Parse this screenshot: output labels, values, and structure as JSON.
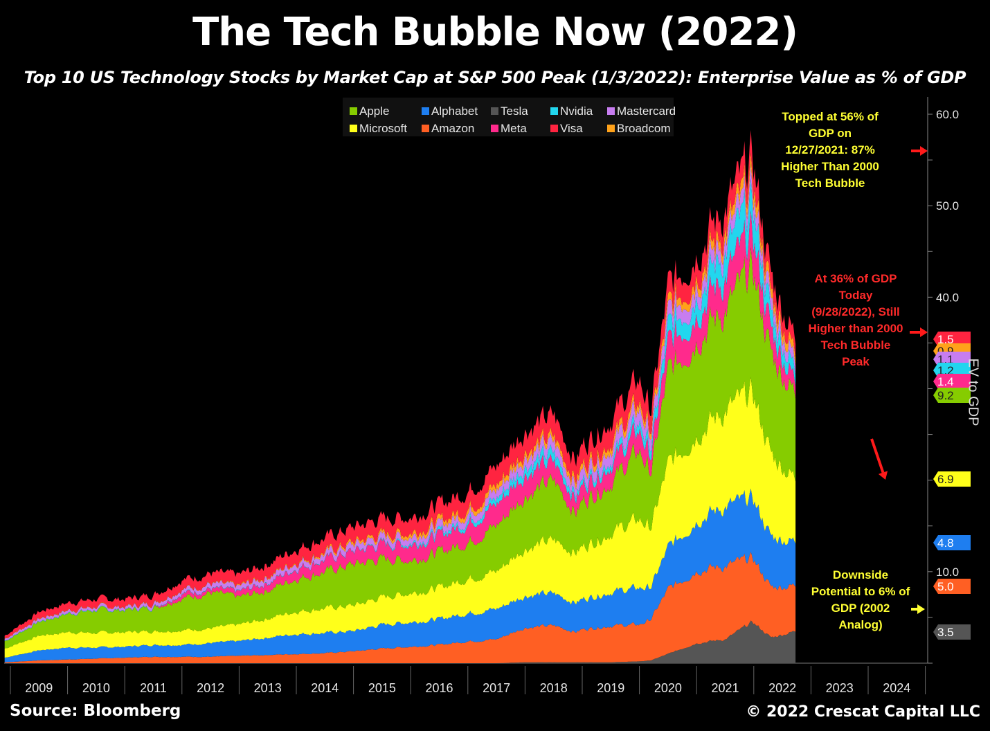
{
  "title": "The Tech Bubble Now (2022)",
  "subtitle": "Top 10 US Technology Stocks by Market Cap at S&P 500 Peak (1/3/2022): Enterprise Value as % of GDP",
  "source": "Source: Bloomberg",
  "copyright": "© 2022 Crescat Capital LLC",
  "annotations": {
    "top": "Topped at 56% of GDP on 12/27/2021: 87% Higher Than 2000 Tech Bubble",
    "middle": "At 36% of GDP Today (9/28/2022), Still Higher than 2000 Tech Bubble Peak",
    "bottom": "Downside Potential to 6% of GDP (2002 Analog)"
  },
  "colors": {
    "annotation_yellow": "#ffff33",
    "annotation_red": "#ff2a2a",
    "arrow_red": "#ff1a1a"
  },
  "chart_data": {
    "type": "area",
    "stacked": true,
    "xlabel": "",
    "ylabel": "EV to GDP",
    "ylim": [
      0,
      60
    ],
    "y_ticks": [
      "10.0",
      "40.0",
      "50.0",
      "60.0"
    ],
    "year_labels": [
      "2009",
      "2010",
      "2011",
      "2012",
      "2013",
      "2014",
      "2015",
      "2016",
      "2017",
      "2018",
      "2019",
      "2020",
      "2021",
      "2022",
      "2023",
      "2024"
    ],
    "x": [
      2008.9,
      2009.5,
      2010.0,
      2010.5,
      2011.0,
      2011.5,
      2012.0,
      2012.5,
      2013.0,
      2013.5,
      2014.0,
      2014.5,
      2015.0,
      2015.5,
      2016.0,
      2016.5,
      2017.0,
      2017.5,
      2018.0,
      2018.5,
      2018.9,
      2019.0,
      2019.5,
      2020.0,
      2020.2,
      2020.5,
      2021.0,
      2021.5,
      2021.98,
      2022.3,
      2022.73
    ],
    "legend": [
      {
        "name": "Apple",
        "color": "#86cc00"
      },
      {
        "name": "Alphabet",
        "color": "#1e7ef0"
      },
      {
        "name": "Tesla",
        "color": "#555555"
      },
      {
        "name": "Nvidia",
        "color": "#22d6ee"
      },
      {
        "name": "Mastercard",
        "color": "#c77df0"
      },
      {
        "name": "Microsoft",
        "color": "#ffff1a"
      },
      {
        "name": "Amazon",
        "color": "#ff5f23"
      },
      {
        "name": "Meta",
        "color": "#ff2a8c"
      },
      {
        "name": "Visa",
        "color": "#ff2440"
      },
      {
        "name": "Broadcom",
        "color": "#ffa21a"
      }
    ],
    "series": [
      {
        "name": "Tesla",
        "color": "#555555",
        "values": [
          0,
          0,
          0,
          0,
          0,
          0,
          0,
          0,
          0,
          0,
          0,
          0,
          0,
          0,
          0,
          0,
          0,
          0,
          0.1,
          0.1,
          0.1,
          0.1,
          0.1,
          0.2,
          0.3,
          1.0,
          2.2,
          2.6,
          4.5,
          2.8,
          3.5
        ]
      },
      {
        "name": "Amazon",
        "color": "#ff5f23",
        "values": [
          0.1,
          0.3,
          0.4,
          0.5,
          0.6,
          0.7,
          0.7,
          0.7,
          0.8,
          0.9,
          1.0,
          1.1,
          1.3,
          1.6,
          1.8,
          2.0,
          2.4,
          2.6,
          3.8,
          4.0,
          3.3,
          3.6,
          4.0,
          4.0,
          4.5,
          7.0,
          8.0,
          8.0,
          7.0,
          5.5,
          5.0
        ]
      },
      {
        "name": "Alphabet",
        "color": "#1e7ef0",
        "values": [
          0.5,
          1.1,
          1.3,
          1.2,
          1.2,
          1.3,
          1.3,
          1.5,
          1.6,
          1.9,
          2.2,
          2.2,
          2.2,
          2.6,
          2.7,
          2.8,
          3.1,
          3.3,
          3.5,
          3.5,
          3.2,
          3.3,
          3.7,
          4.0,
          3.5,
          4.5,
          5.5,
          6.5,
          6.5,
          5.5,
          4.8
        ]
      },
      {
        "name": "Microsoft",
        "color": "#ffff1a",
        "values": [
          1.0,
          1.6,
          1.7,
          1.6,
          1.6,
          1.5,
          1.6,
          1.6,
          1.8,
          2.1,
          2.5,
          2.7,
          2.8,
          3.0,
          3.2,
          3.4,
          3.8,
          4.1,
          5.2,
          5.8,
          5.5,
          5.7,
          6.5,
          7.5,
          6.5,
          9.0,
          9.5,
          10.5,
          11.5,
          9.0,
          6.9
        ]
      },
      {
        "name": "Apple",
        "color": "#86cc00",
        "values": [
          0.8,
          1.5,
          2.0,
          2.5,
          2.4,
          2.6,
          3.5,
          3.9,
          3.0,
          3.1,
          3.6,
          4.0,
          4.5,
          4.2,
          3.6,
          3.9,
          4.0,
          5.0,
          5.8,
          6.5,
          4.3,
          5.0,
          5.5,
          7.5,
          6.0,
          10.0,
          10.5,
          11.0,
          13.5,
          11.0,
          9.2
        ]
      },
      {
        "name": "Meta",
        "color": "#ff2a8c",
        "values": [
          0,
          0,
          0,
          0,
          0,
          0,
          0.5,
          0.4,
          0.6,
          0.8,
          1.1,
          1.3,
          1.4,
          1.6,
          1.7,
          1.8,
          2.0,
          2.3,
          2.4,
          2.0,
          1.5,
          1.7,
          2.0,
          2.2,
          1.8,
          3.0,
          3.0,
          3.6,
          3.8,
          2.5,
          1.4
        ]
      },
      {
        "name": "Nvidia",
        "color": "#22d6ee",
        "values": [
          0.05,
          0.05,
          0.05,
          0.05,
          0.05,
          0.05,
          0.05,
          0.05,
          0.05,
          0.05,
          0.05,
          0.05,
          0.05,
          0.1,
          0.2,
          0.3,
          0.4,
          0.6,
          0.9,
          1.0,
          0.5,
          0.5,
          0.6,
          0.9,
          1.0,
          1.7,
          2.0,
          2.8,
          3.3,
          1.8,
          1.2
        ]
      },
      {
        "name": "Mastercard",
        "color": "#c77df0",
        "values": [
          0.2,
          0.3,
          0.3,
          0.3,
          0.3,
          0.4,
          0.4,
          0.5,
          0.5,
          0.6,
          0.6,
          0.6,
          0.7,
          0.7,
          0.7,
          0.8,
          0.8,
          0.9,
          1.1,
          1.2,
          1.1,
          1.2,
          1.3,
          1.5,
          1.3,
          1.5,
          1.5,
          1.5,
          1.5,
          1.3,
          1.1
        ]
      },
      {
        "name": "Broadcom",
        "color": "#ffa21a",
        "values": [
          0.05,
          0.05,
          0.05,
          0.05,
          0.05,
          0.05,
          0.05,
          0.05,
          0.1,
          0.1,
          0.1,
          0.2,
          0.3,
          0.3,
          0.4,
          0.5,
          0.5,
          0.6,
          0.6,
          0.6,
          0.6,
          0.6,
          0.7,
          0.7,
          0.6,
          0.8,
          0.9,
          1.0,
          1.2,
          1.0,
          0.9
        ]
      },
      {
        "name": "Visa",
        "color": "#ff2440",
        "values": [
          0.3,
          0.7,
          0.8,
          0.8,
          0.8,
          0.9,
          1.0,
          1.1,
          1.2,
          1.3,
          1.4,
          1.5,
          1.6,
          1.7,
          1.7,
          1.8,
          1.9,
          2.0,
          2.2,
          2.3,
          2.0,
          2.1,
          2.3,
          2.5,
          2.0,
          2.2,
          2.2,
          2.2,
          2.3,
          1.8,
          1.5
        ]
      }
    ],
    "right_labels": [
      {
        "name": "Visa",
        "label": "1.5",
        "color": "#ff2440"
      },
      {
        "name": "Broadcom",
        "label": "0.9",
        "color": "#ffa21a"
      },
      {
        "name": "Mastercard",
        "label": "1.1",
        "color": "#c77df0"
      },
      {
        "name": "Nvidia",
        "label": "1.2",
        "color": "#22d6ee"
      },
      {
        "name": "Meta",
        "label": "1.4",
        "color": "#ff2a8c"
      },
      {
        "name": "Apple",
        "label": "9.2",
        "color": "#86cc00"
      },
      {
        "name": "Microsoft",
        "label": "6.9",
        "color": "#ffff1a"
      },
      {
        "name": "Alphabet",
        "label": "4.8",
        "color": "#1e7ef0"
      },
      {
        "name": "Amazon",
        "label": "5.0",
        "color": "#ff5f23"
      },
      {
        "name": "Tesla",
        "label": "3.5",
        "color": "#555555"
      }
    ],
    "grid": false,
    "legend_position": "top-center"
  }
}
